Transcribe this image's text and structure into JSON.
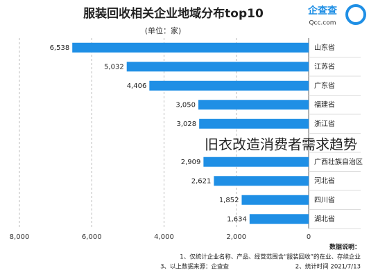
{
  "chart_data": {
    "type": "bar",
    "orientation": "horizontal",
    "axis_reversed": true,
    "title": "服装回收相关企业地域分布top10",
    "subtitle": "(单位：家)",
    "categories": [
      "山东省",
      "江苏省",
      "广东省",
      "福建省",
      "浙江省",
      null,
      "广西壮族自治区",
      "河北省",
      "四川省",
      "湖北省"
    ],
    "values": [
      6538,
      5032,
      4406,
      3050,
      3028,
      null,
      2909,
      2621,
      1852,
      1634
    ],
    "value_labels": [
      "6,538",
      "5,032",
      "4,406",
      "3,050",
      "3,028",
      null,
      "2,909",
      "2,621",
      "1,852",
      "1,634"
    ],
    "color": "#1f8fe5",
    "xlim": [
      0,
      8000
    ],
    "xticks": [
      0,
      {
        "value": 2000,
        "label": "2,000"
      },
      {
        "value": 4000,
        "label": "4,000"
      },
      {
        "value": 6000,
        "label": "6,000"
      },
      {
        "value": 8000,
        "label": "8,000"
      }
    ],
    "grid": true
  },
  "logo": {
    "name": "企查查",
    "url": "Qcc.com"
  },
  "notes": {
    "heading": "数据说明：",
    "items": [
      "1、仅统计企业名称、产品、经营范围含“服装回收”的在业、存续企业",
      "2、统计时间 2021/7/13",
      "3、以上数据来源：企查查"
    ]
  },
  "overlay": "旧衣改造消费者需求趋势"
}
